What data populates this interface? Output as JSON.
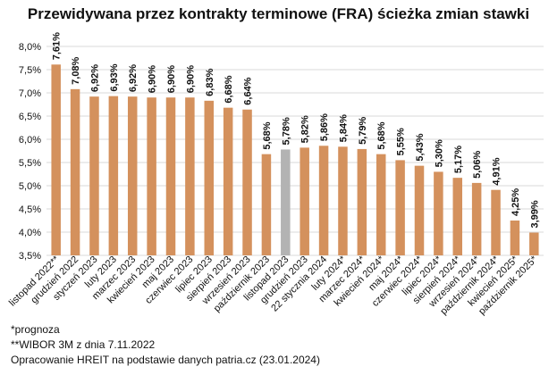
{
  "chart_data": {
    "type": "bar",
    "title": "Przewidywana przez kontrakty terminowe (FRA) ścieżka zmian stawki",
    "xlabel": "",
    "ylabel": "",
    "ylim": [
      3.5,
      8.0
    ],
    "yticks": [
      "3,5%",
      "4,0%",
      "4,5%",
      "5,0%",
      "5,5%",
      "6,0%",
      "6,5%",
      "7,0%",
      "7,5%",
      "8,0%"
    ],
    "grid": true,
    "legend": "none",
    "colors": {
      "bar": "#D4915D",
      "highlight": "#B3B3B3",
      "grid": "#D9D9D9"
    },
    "highlight_index": 12,
    "categories": [
      "listopad 2022**",
      "grudzień 2022",
      "styczeń 2023",
      "luty 2023",
      "marzec 2023",
      "kwiecień 2023",
      "maj 2023",
      "czerwiec 2023",
      "lipiec 2023",
      "sierpień 2023",
      "wrzesień 2023",
      "październik 2023",
      "listopad 2023",
      "grudzień 2023",
      "22 stycznia 2024",
      "luty 2024*",
      "marzec 2024*",
      "kwiecień 2024*",
      "maj 2024*",
      "czerwiec 2024*",
      "lipiec 2024*",
      "sierpień 2024*",
      "wrzesień 2024*",
      "październik 2024*",
      "kwiecień 2025*",
      "październik 2025*"
    ],
    "values": [
      7.61,
      7.08,
      6.92,
      6.93,
      6.92,
      6.9,
      6.9,
      6.9,
      6.83,
      6.68,
      6.64,
      5.68,
      5.78,
      5.82,
      5.86,
      5.84,
      5.79,
      5.68,
      5.55,
      5.43,
      5.3,
      5.17,
      5.06,
      4.91,
      4.25,
      3.99
    ],
    "labels": [
      "7,61%",
      "7,08%",
      "6,92%",
      "6,93%",
      "6,92%",
      "6,90%",
      "6,90%",
      "6,90%",
      "6,83%",
      "6,68%",
      "6,64%",
      "5,68%",
      "5,78%",
      "5,82%",
      "5,86%",
      "5,84%",
      "5,79%",
      "5,68%",
      "5,55%",
      "5,43%",
      "5,30%",
      "5,17%",
      "5,06%",
      "4,91%",
      "4,25%",
      "3,99%"
    ]
  },
  "notes": {
    "forecast": "*prognoza",
    "wibor": "**WIBOR 3M z dnia 7.11.2022",
    "source": "Opracowanie HREIT na podstawie danych patria.cz (23.01.2024)"
  }
}
